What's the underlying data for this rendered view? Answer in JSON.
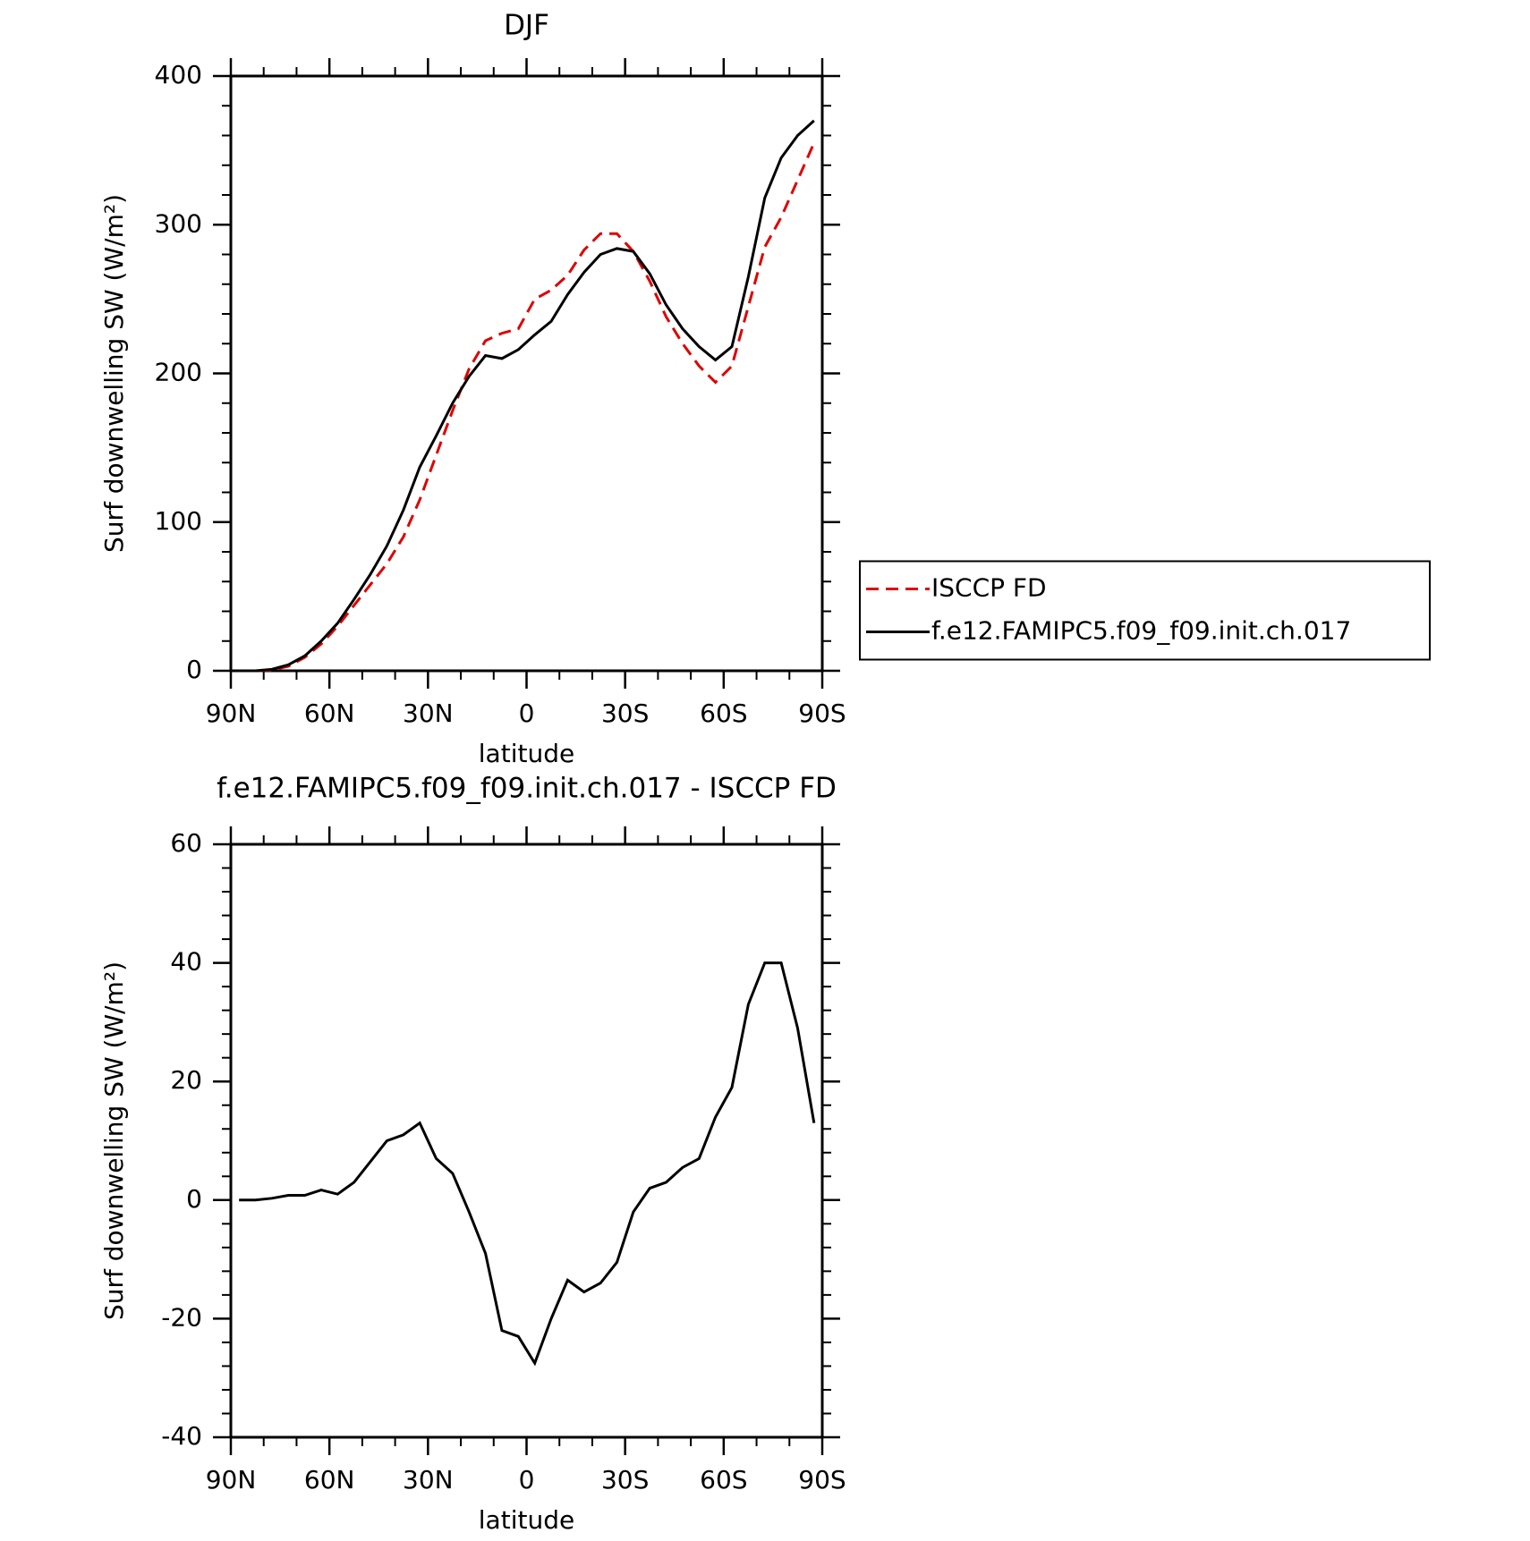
{
  "chart_data": [
    {
      "type": "line",
      "title": "DJF",
      "xlabel": "latitude",
      "ylabel": "Surf downwelling SW (W/m²)",
      "x": [
        87.5,
        82.5,
        77.5,
        72.5,
        67.5,
        62.5,
        57.5,
        52.5,
        47.5,
        42.5,
        37.5,
        32.5,
        27.5,
        22.5,
        17.5,
        12.5,
        7.5,
        2.5,
        -2.5,
        -7.5,
        -12.5,
        -17.5,
        -22.5,
        -27.5,
        -32.5,
        -37.5,
        -42.5,
        -47.5,
        -52.5,
        -57.5,
        -62.5,
        -67.5,
        -72.5,
        -77.5,
        -82.5,
        -87.5
      ],
      "series": [
        {
          "name": "ISCCP FD",
          "color": "#e00000",
          "style": "dashed",
          "values": [
            0,
            0,
            0.5,
            3,
            9,
            18,
            30,
            44,
            58,
            72,
            90,
            115,
            145,
            175,
            203,
            222,
            227,
            230,
            250,
            256,
            266,
            283,
            294,
            294,
            282,
            262,
            238,
            220,
            205,
            194,
            205,
            245,
            285,
            305,
            330,
            355
          ]
        },
        {
          "name": "f.e12.FAMIPC5.f09_f09.init.ch.017",
          "color": "#000000",
          "style": "solid",
          "values": [
            0,
            0,
            1,
            4,
            10,
            20,
            32,
            48,
            65,
            84,
            108,
            137,
            158,
            180,
            198,
            212,
            210,
            216,
            226,
            235,
            253,
            268,
            280,
            284,
            282,
            267,
            246,
            230,
            218,
            209,
            218,
            265,
            318,
            345,
            360,
            370
          ]
        }
      ],
      "xlim": [
        90,
        -90
      ],
      "xticks": [
        {
          "value": 90,
          "label": "90N"
        },
        {
          "value": 60,
          "label": "60N"
        },
        {
          "value": 30,
          "label": "30N"
        },
        0,
        {
          "value": -30,
          "label": "30S"
        },
        {
          "value": -60,
          "label": "60S"
        },
        {
          "value": -90,
          "label": "90S"
        }
      ],
      "ylim": [
        0,
        400
      ],
      "yticks": [
        0,
        100,
        200,
        300,
        400
      ],
      "legend": "right"
    },
    {
      "type": "line",
      "title": "f.e12.FAMIPC5.f09_f09.init.ch.017 - ISCCP FD",
      "xlabel": "latitude",
      "ylabel": "Surf downwelling SW (W/m²)",
      "x": [
        87.5,
        82.5,
        77.5,
        72.5,
        67.5,
        62.5,
        57.5,
        52.5,
        47.5,
        42.5,
        37.5,
        32.5,
        27.5,
        22.5,
        17.5,
        12.5,
        7.5,
        2.5,
        -2.5,
        -7.5,
        -12.5,
        -17.5,
        -22.5,
        -27.5,
        -32.5,
        -37.5,
        -42.5,
        -47.5,
        -52.5,
        -57.5,
        -62.5,
        -67.5,
        -72.5,
        -77.5,
        -82.5,
        -87.5
      ],
      "series": [
        {
          "color": "#000000",
          "style": "solid",
          "values": [
            0,
            0,
            0.3,
            0.8,
            0.8,
            1.7,
            1,
            3,
            6.5,
            10,
            11,
            13,
            7,
            4.5,
            -2,
            -9,
            -22,
            -23,
            -27.5,
            -20,
            -13.5,
            -15.5,
            -14,
            -10.5,
            -2,
            2,
            3,
            5.5,
            7,
            14,
            19,
            33,
            40,
            40,
            29,
            13
          ]
        }
      ],
      "xlim": [
        90,
        -90
      ],
      "xticks": [
        {
          "value": 90,
          "label": "90N"
        },
        {
          "value": 60,
          "label": "60N"
        },
        {
          "value": 30,
          "label": "30N"
        },
        0,
        {
          "value": -30,
          "label": "30S"
        },
        {
          "value": -60,
          "label": "60S"
        },
        {
          "value": -90,
          "label": "90S"
        }
      ],
      "ylim": [
        -40,
        60
      ],
      "yticks": [
        -40,
        -20,
        0,
        20,
        40,
        60
      ]
    }
  ]
}
